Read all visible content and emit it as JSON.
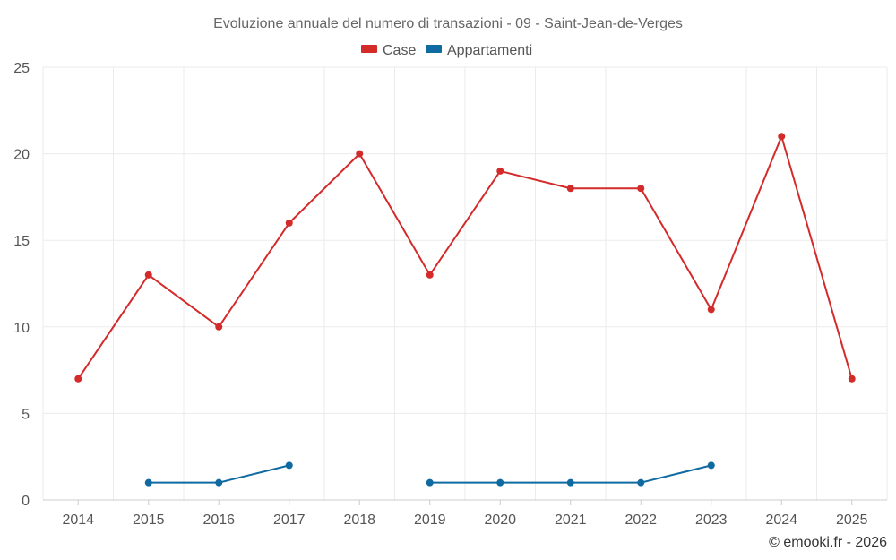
{
  "chart_data": {
    "type": "line",
    "title": "Evoluzione annuale del numero di transazioni - 09 - Saint-Jean-de-Verges",
    "categories": [
      "2014",
      "2015",
      "2016",
      "2017",
      "2018",
      "2019",
      "2020",
      "2021",
      "2022",
      "2023",
      "2024",
      "2025"
    ],
    "ylim": [
      0,
      25
    ],
    "yticks": [
      0,
      5,
      10,
      15,
      20,
      25
    ],
    "grid": true,
    "legend_position": "top-center",
    "series": [
      {
        "name": "Case",
        "color": "#d32a2a",
        "values": [
          7,
          13,
          10,
          16,
          20,
          13,
          19,
          18,
          18,
          11,
          21,
          7
        ]
      },
      {
        "name": "Appartamenti",
        "color": "#0e6aa0",
        "values": [
          null,
          1,
          1,
          2,
          null,
          1,
          1,
          1,
          1,
          2,
          null,
          null
        ]
      }
    ]
  },
  "credit": "© emooki.fr - 2026"
}
